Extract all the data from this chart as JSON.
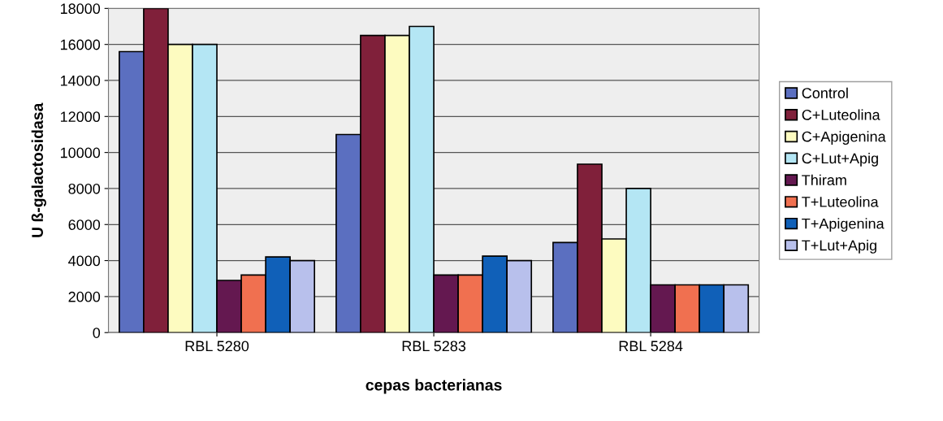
{
  "chart_data": {
    "type": "bar",
    "xlabel": "cepas bacterianas",
    "ylabel": "U ß-galactosidasa",
    "categories": [
      "RBL 5280",
      "RBL 5283",
      "RBL 5284"
    ],
    "series": [
      {
        "name": "Control",
        "color": "#5b6fc0",
        "values": [
          15600,
          11000,
          5000
        ]
      },
      {
        "name": "C+Luteolina",
        "color": "#80203a",
        "values": [
          18000,
          16500,
          9350
        ]
      },
      {
        "name": "C+Apigenina",
        "color": "#fdfbc0",
        "values": [
          16000,
          16500,
          5200
        ]
      },
      {
        "name": "C+Lut+Apig",
        "color": "#b4e6f4",
        "values": [
          16000,
          17000,
          8000
        ]
      },
      {
        "name": "Thiram",
        "color": "#641850",
        "values": [
          2900,
          3200,
          2650
        ]
      },
      {
        "name": "T+Luteolina",
        "color": "#f07050",
        "values": [
          3200,
          3200,
          2650
        ]
      },
      {
        "name": "T+Apigenina",
        "color": "#1060b8",
        "values": [
          4200,
          4250,
          2650
        ]
      },
      {
        "name": "T+Lut+Apig",
        "color": "#b8c0ec",
        "values": [
          4000,
          4000,
          2650
        ]
      }
    ],
    "ylim": [
      0,
      18000
    ],
    "yticks": [
      0,
      2000,
      4000,
      6000,
      8000,
      10000,
      12000,
      14000,
      16000,
      18000
    ],
    "grid": "y",
    "legend": "right"
  }
}
